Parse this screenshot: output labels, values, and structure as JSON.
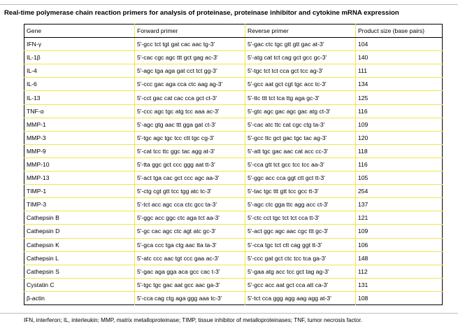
{
  "caption": "Real-time polymerase chain reaction primers for analysis of proteinase, proteinase inhibitor and cytokine mRNA expression",
  "table": {
    "headers": {
      "gene": "Gene",
      "forward": "Forward primer",
      "reverse": "Reverse primer",
      "size": "Product size (base pairs)"
    },
    "rows": [
      {
        "gene": "IFN-γ",
        "forward": "5'-gcc tct tgt gat cac aac tg-3'",
        "reverse": "5'-gac ctc tgc gtt gtt gac at-3'",
        "size": "104"
      },
      {
        "gene": "IL-1β",
        "forward": "5'-cac cgc agc ttt gct gag ac-3'",
        "reverse": "5'-atg cat tct cag gct gcc gc-3'",
        "size": "140"
      },
      {
        "gene": "IL-4",
        "forward": "5'-agc tga aga gat cct tct gg-3'",
        "reverse": "5'-tgc tct tct cca gct tcc ag-3'",
        "size": "111"
      },
      {
        "gene": "IL-6",
        "forward": "5'-ccc gac aga cca ctc aag ag-3'",
        "reverse": "5'-gcc aat gct cgt tgc acc tc-3'",
        "size": "134"
      },
      {
        "gene": "IL-13",
        "forward": "5'-cct gac cat cac cca gct ct-3'",
        "reverse": "5'-ttc ttt tct tca ttg aga gc-3'",
        "size": "125"
      },
      {
        "gene": "TNF-α",
        "forward": "5'-ccc agc tgc atg tcc aaa ac-3'",
        "reverse": "5'-gtc agc gac agc gac atg ct-3'",
        "size": "116"
      },
      {
        "gene": "MMP-1",
        "forward": "5'-agc gtg aac ttt gga gat ct-3'",
        "reverse": "5'-cac atc ttc cat cgc ctg ta-3'",
        "size": "109"
      },
      {
        "gene": "MMP-3",
        "forward": "5'-tgc agc tgc tcc ctt tgc cg-3'",
        "reverse": "5'-gcc ttc gct gac tgc tac ag-3'",
        "size": "120"
      },
      {
        "gene": "MMP-9",
        "forward": "5'-cat tcc ttc ggc tac agg at-3'",
        "reverse": "5'-att tgc gac aac cat acc cc-3'",
        "size": "118"
      },
      {
        "gene": "MMP-10",
        "forward": "5'-tta ggc gct ccc ggg aat tt-3'",
        "reverse": "5'-cca gtt tct gcc tcc tcc aa-3'",
        "size": "116"
      },
      {
        "gene": "MMP-13",
        "forward": "5'-act tga cac gct ccc agc aa-3'",
        "reverse": "5'-ggc acc cca ggt ctt gct tt-3'",
        "size": "105"
      },
      {
        "gene": "TIMP-1",
        "forward": "5'-ctg cgt gtt tcc tgg atc tc-3'",
        "reverse": "5'-tac tgc ttt gtt tcc gcc tt-3'",
        "size": "254"
      },
      {
        "gene": "TIMP-3",
        "forward": "5'-tct acc agc cca ctc gcc ta-3'",
        "reverse": "5'-agc ctc gga ttc agg acc ct-3'",
        "size": "137"
      },
      {
        "gene": "Cathepsin B",
        "forward": "5'-ggc acc ggc ctc aga tct aa-3'",
        "reverse": "5'-ctc cct tgc tct tct cca tt-3'",
        "size": "121"
      },
      {
        "gene": "Cathepsin D",
        "forward": "5'-gc cac agc ctc agt atc gc-3'",
        "reverse": "5'-act ggc agc aac cgc ttt gc-3'",
        "size": "109"
      },
      {
        "gene": "Cathepsin K",
        "forward": "5'-gca ccc tga ctg aac tta ta-3'",
        "reverse": "5'-cca tgc tct ctt cag ggt tt-3'",
        "size": "106"
      },
      {
        "gene": "Cathepsin L",
        "forward": "5'-atc ccc aac tgt ccc gaa ac-3'",
        "reverse": "5'-ccc gat gct ctc tcc tca ga-3'",
        "size": "148"
      },
      {
        "gene": "Cathepsin S",
        "forward": "5'-gac aga gga aca gcc cac t-3'",
        "reverse": "5'-gaa atg acc tcc gct tag ag-3'",
        "size": "112"
      },
      {
        "gene": "Cystatin C",
        "forward": "5'-tgc tgc gac aat gcc aac ga-3'",
        "reverse": "5'-gcc acc aat gct cca att ca-3'",
        "size": "131"
      },
      {
        "gene": "β-actin",
        "forward": "5'-cca cag ctg aga ggg aaa tc-3'",
        "reverse": "5'-tct cca ggg agg aag agg at-3'",
        "size": "108"
      }
    ]
  },
  "footnote": "IFN, interferon; IL, interleukin; MMP, matrix metalloproteinase; TIMP, tissue inhibitor of metalloproteinases; TNF, tumor necrosis factor."
}
